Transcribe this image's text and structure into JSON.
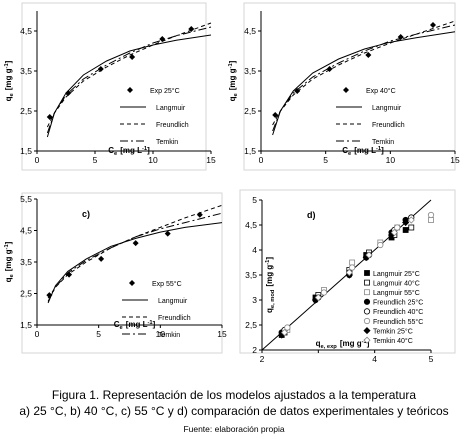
{
  "caption": {
    "line1": "Figura 1. Representación de los modelos ajustados a la temperatura",
    "line2": "a) 25 °C, b) 40 °C, c) 55 °C y d) comparación de datos experimentales y teóricos",
    "source": "Fuente: elaboración propia"
  },
  "chart_data": [
    {
      "id": "a",
      "type": "scatter",
      "panel_label": "",
      "xlabel_main": "C",
      "xlabel_sub": "e",
      "xlabel_unit": "[mg L",
      "xlabel_sup": "-1",
      "xlabel_end": "]",
      "ylabel_main": "q",
      "ylabel_sub": "e",
      "ylabel_unit": "[mg g",
      "ylabel_sup": "-1",
      "ylabel_end": "]",
      "xlim": [
        0,
        15
      ],
      "ylim": [
        1.5,
        5
      ],
      "xticks": [
        "0",
        "5",
        "10",
        "15"
      ],
      "yticks": [
        "1,5",
        "2,5",
        "3,5",
        "4,5"
      ],
      "ytick_values": [
        1.5,
        2.5,
        3.5,
        4.5
      ],
      "legend": [
        "Exp 25°C",
        "Langmuir",
        "Freundlich",
        "Temkin"
      ],
      "exp": {
        "x": [
          1.1,
          2.7,
          5.5,
          8.2,
          10.8,
          13.3
        ],
        "y": [
          2.35,
          2.95,
          3.55,
          3.85,
          4.3,
          4.55
        ]
      },
      "models": {
        "langmuir": {
          "x": [
            0.9,
            1.5,
            2.5,
            4,
            6,
            8,
            10,
            12,
            15
          ],
          "y": [
            1.85,
            2.45,
            2.95,
            3.4,
            3.75,
            4.0,
            4.15,
            4.27,
            4.4
          ]
        },
        "freundlich": {
          "x": [
            0.9,
            1.5,
            2.5,
            4,
            6,
            8,
            10,
            12,
            15
          ],
          "y": [
            2.1,
            2.45,
            2.85,
            3.25,
            3.6,
            3.9,
            4.15,
            4.38,
            4.7
          ]
        },
        "temkin": {
          "x": [
            0.9,
            1.5,
            2.5,
            4,
            6,
            8,
            10,
            12,
            15
          ],
          "y": [
            1.95,
            2.45,
            2.9,
            3.3,
            3.65,
            3.95,
            4.2,
            4.38,
            4.6
          ]
        }
      }
    },
    {
      "id": "b",
      "type": "scatter",
      "panel_label": "",
      "xlabel_main": "C",
      "xlabel_sub": "e",
      "xlabel_unit": "[mg L",
      "xlabel_sup": "-1",
      "xlabel_end": "]",
      "ylabel_main": "q",
      "ylabel_sub": "e",
      "ylabel_unit": "[mg g",
      "ylabel_sup": "-1",
      "ylabel_end": "]",
      "xlim": [
        0,
        15
      ],
      "ylim": [
        1.5,
        5
      ],
      "xticks": [
        "0",
        "5",
        "10",
        "15"
      ],
      "yticks": [
        "1,5",
        "2,5",
        "3,5",
        "4,5"
      ],
      "ytick_values": [
        1.5,
        2.5,
        3.5,
        4.5
      ],
      "legend": [
        "Exp 40°C",
        "Langmuir",
        "Freundlich",
        "Temkin"
      ],
      "exp": {
        "x": [
          1.1,
          2.8,
          5.3,
          8.3,
          10.8,
          13.3
        ],
        "y": [
          2.4,
          3.0,
          3.55,
          3.9,
          4.35,
          4.65
        ]
      },
      "models": {
        "langmuir": {
          "x": [
            0.9,
            1.5,
            2.5,
            4,
            6,
            8,
            10,
            12,
            15
          ],
          "y": [
            1.9,
            2.5,
            3.0,
            3.45,
            3.8,
            4.05,
            4.22,
            4.33,
            4.48
          ]
        },
        "freundlich": {
          "x": [
            0.9,
            1.5,
            2.5,
            4,
            6,
            8,
            10,
            12,
            15
          ],
          "y": [
            2.15,
            2.5,
            2.9,
            3.3,
            3.65,
            3.95,
            4.2,
            4.42,
            4.75
          ]
        },
        "temkin": {
          "x": [
            0.9,
            1.5,
            2.5,
            4,
            6,
            8,
            10,
            12,
            15
          ],
          "y": [
            2.0,
            2.5,
            2.95,
            3.35,
            3.7,
            4.0,
            4.25,
            4.42,
            4.65
          ]
        }
      }
    },
    {
      "id": "c",
      "type": "scatter",
      "panel_label": "c)",
      "xlabel_main": "C",
      "xlabel_sub": "e",
      "xlabel_unit": "[mg L",
      "xlabel_sup": "-1",
      "xlabel_end": "]",
      "ylabel_main": "q",
      "ylabel_sub": "e",
      "ylabel_unit": "[mg g",
      "ylabel_sup": "-1",
      "ylabel_end": "]",
      "xlim": [
        0,
        15
      ],
      "ylim": [
        1.5,
        5.5
      ],
      "xticks": [
        "0",
        "5",
        "10",
        "15"
      ],
      "yticks": [
        "1,5",
        "2,5",
        "3,5",
        "4,5",
        "5,5"
      ],
      "ytick_values": [
        1.5,
        2.5,
        3.5,
        4.5,
        5.5
      ],
      "legend": [
        "Exp 55°C",
        "Langmuir",
        "Freundlich",
        "Temkin"
      ],
      "exp": {
        "x": [
          1.0,
          2.6,
          5.2,
          8.0,
          10.6,
          13.2
        ],
        "y": [
          2.45,
          3.1,
          3.6,
          4.1,
          4.4,
          5.0
        ]
      },
      "models": {
        "langmuir": {
          "x": [
            0.9,
            1.5,
            2.5,
            4,
            6,
            8,
            10,
            12,
            15
          ],
          "y": [
            2.2,
            2.75,
            3.2,
            3.6,
            4.0,
            4.25,
            4.45,
            4.6,
            4.75
          ]
        },
        "freundlich": {
          "x": [
            0.9,
            1.5,
            2.5,
            4,
            6,
            8,
            10,
            12,
            15
          ],
          "y": [
            2.35,
            2.7,
            3.1,
            3.5,
            3.95,
            4.3,
            4.6,
            4.9,
            5.3
          ]
        },
        "temkin": {
          "x": [
            0.9,
            1.5,
            2.5,
            4,
            6,
            8,
            10,
            12,
            15
          ],
          "y": [
            2.25,
            2.7,
            3.15,
            3.55,
            3.95,
            4.3,
            4.55,
            4.75,
            5.05
          ]
        }
      }
    },
    {
      "id": "d",
      "type": "scatter",
      "panel_label": "d)",
      "xlabel_main": "q",
      "xlabel_sub": "e, exp",
      "xlabel_unit": "[mg g",
      "xlabel_sup": "-1",
      "xlabel_end": "]",
      "ylabel_main": "q",
      "ylabel_sub": "e, mod",
      "ylabel_unit": "[mg g",
      "ylabel_sup": "-1",
      "ylabel_end": "]",
      "xlim": [
        2,
        5
      ],
      "ylim": [
        2,
        5
      ],
      "xticks": [
        "2",
        "",
        "4",
        "5"
      ],
      "yticks": [
        "2",
        "2,5",
        "3",
        "3,5",
        "4",
        "4,5",
        "5"
      ],
      "ytick_values": [
        2,
        2.5,
        3,
        3.5,
        4,
        4.5,
        5
      ],
      "identity_line": [
        [
          2,
          2
        ],
        [
          5,
          5
        ]
      ],
      "legend": [
        "Langmuir 25°C",
        "Langmuir 40°C",
        "Langmuir 55°C",
        "Freundlich 25°C",
        "Freundlich 40°C",
        "Freundlich 55°C",
        "Temkin 25°C",
        "Temkin 40°C"
      ],
      "series": [
        {
          "name": "Langmuir 25°C",
          "x": [
            2.35,
            2.95,
            3.55,
            3.85,
            4.3,
            4.55
          ],
          "y": [
            2.3,
            3.05,
            3.55,
            3.9,
            4.25,
            4.4
          ]
        },
        {
          "name": "Langmuir 40°C",
          "x": [
            2.4,
            3.0,
            3.55,
            3.9,
            4.35,
            4.65
          ],
          "y": [
            2.35,
            3.1,
            3.6,
            3.95,
            4.3,
            4.45
          ]
        },
        {
          "name": "Langmuir 55°C",
          "x": [
            2.45,
            3.1,
            3.6,
            4.1,
            4.4,
            5.0
          ],
          "y": [
            2.4,
            3.2,
            3.75,
            4.15,
            4.45,
            4.6
          ]
        },
        {
          "name": "Freundlich 25°C",
          "x": [
            2.35,
            2.95,
            3.55,
            3.85,
            4.3,
            4.55
          ],
          "y": [
            2.35,
            3.0,
            3.5,
            3.85,
            4.35,
            4.6
          ]
        },
        {
          "name": "Freundlich 40°C",
          "x": [
            2.4,
            3.0,
            3.55,
            3.9,
            4.35,
            4.65
          ],
          "y": [
            2.4,
            3.05,
            3.55,
            3.9,
            4.4,
            4.65
          ]
        },
        {
          "name": "Freundlich 55°C",
          "x": [
            2.45,
            3.1,
            3.6,
            4.1,
            4.4,
            5.0
          ],
          "y": [
            2.45,
            3.15,
            3.65,
            4.1,
            4.45,
            4.7
          ]
        },
        {
          "name": "Temkin 25°C",
          "x": [
            2.35,
            2.95,
            3.55,
            3.85,
            4.3,
            4.55
          ],
          "y": [
            2.3,
            3.0,
            3.5,
            3.85,
            4.3,
            4.55
          ]
        },
        {
          "name": "Temkin 40°C",
          "x": [
            2.4,
            3.0,
            3.55,
            3.9,
            4.35,
            4.65
          ],
          "y": [
            2.35,
            3.05,
            3.55,
            3.9,
            4.35,
            4.6
          ]
        }
      ]
    }
  ]
}
